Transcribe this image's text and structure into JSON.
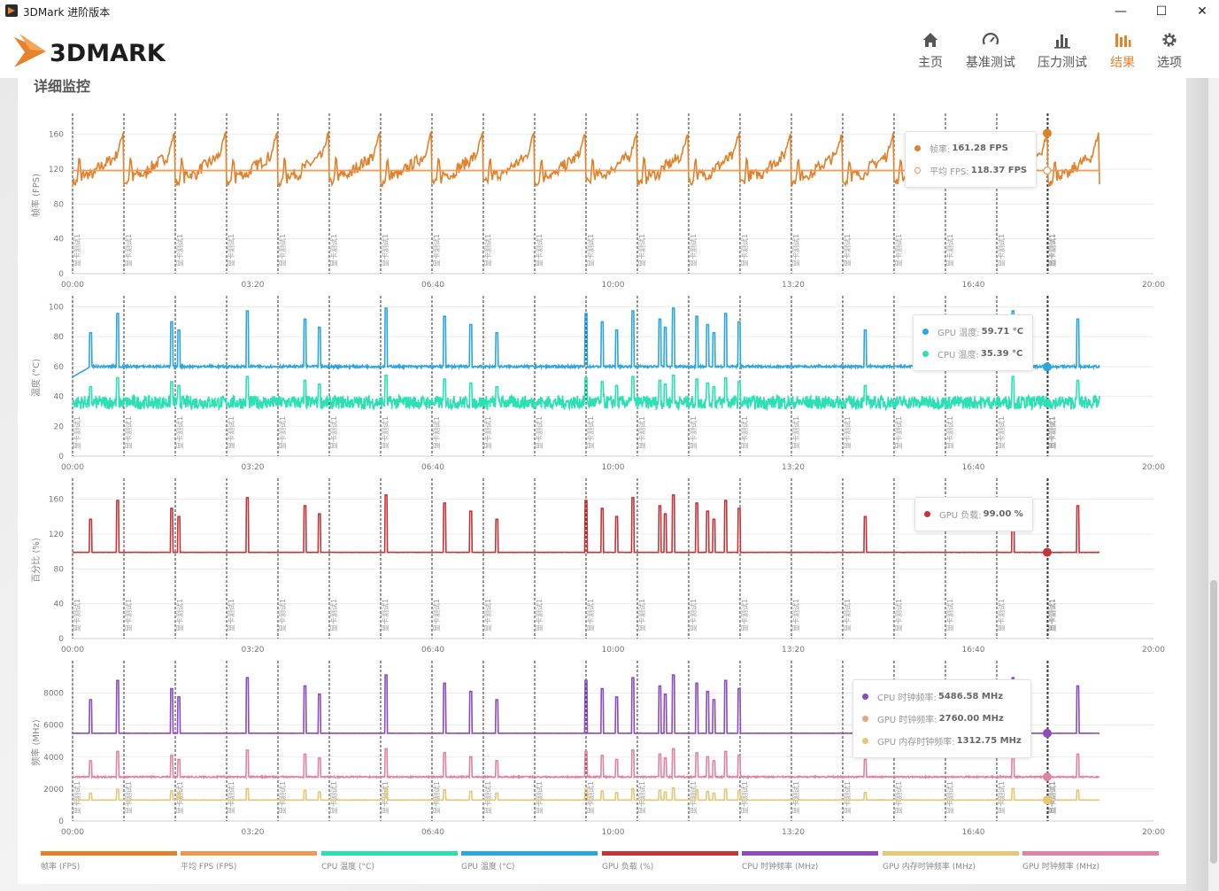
{
  "window": {
    "title": "3DMark 进阶版本",
    "minimize": "—",
    "maximize": "☐",
    "close": "✕"
  },
  "header": {
    "logo_text": "3DMARK",
    "nav": [
      {
        "label": "主页",
        "icon": "home-icon"
      },
      {
        "label": "基准测试",
        "icon": "gauge-icon"
      },
      {
        "label": "压力测试",
        "icon": "bar-chart-icon"
      },
      {
        "label": "结果",
        "icon": "results-icon",
        "active": true
      },
      {
        "label": "选项",
        "icon": "gear-icon"
      }
    ]
  },
  "section_title": "详细监控",
  "colors": {
    "accent": "#e5822b",
    "fps": "#e0812c",
    "avg_fps": "#ec9a55",
    "gpu_temp": "#2ba7df",
    "cpu_temp": "#2de0b4",
    "gpu_load": "#c3353a",
    "cpu_clock": "#8d4bbd",
    "gpu_clock": "#e083a2",
    "gpu_mem_clock": "#e7c775"
  },
  "x_ticks": [
    "00:00",
    "03:20",
    "06:40",
    "10:00",
    "13:20",
    "16:40",
    "20:00"
  ],
  "marker_label": "显卡测试1",
  "tooltips": {
    "fps": [
      {
        "label": "帧率:",
        "value": "161.28 FPS"
      },
      {
        "label": "平均 FPS:",
        "value": "118.37 FPS"
      }
    ],
    "temp": [
      {
        "label": "GPU 温度:",
        "value": "59.71 °C"
      },
      {
        "label": "CPU 温度:",
        "value": "35.39 °C"
      }
    ],
    "load": [
      {
        "label": "GPU 负载:",
        "value": "99.00 %"
      }
    ],
    "clock": [
      {
        "label": "CPU 时钟频率:",
        "value": "5486.58 MHz"
      },
      {
        "label": "GPU 时钟频率:",
        "value": "2760.00 MHz"
      },
      {
        "label": "GPU 内存时钟频率:",
        "value": "1312.75 MHz"
      }
    ]
  },
  "legend": [
    {
      "label": "帧率 (FPS)",
      "color": "#e0812c"
    },
    {
      "label": "平均 FPS (FPS)",
      "color": "#ec9a55"
    },
    {
      "label": "CPU 温度 (°C)",
      "color": "#2de0b4"
    },
    {
      "label": "GPU 温度 (°C)",
      "color": "#2ba7df"
    },
    {
      "label": "GPU 负载 (%)",
      "color": "#c3353a"
    },
    {
      "label": "CPU 时钟频率 (MHz)",
      "color": "#8d4bbd"
    },
    {
      "label": "GPU 内存时钟频率 (MHz)",
      "color": "#e7c775"
    },
    {
      "label": "GPU 时钟频率 (MHz)",
      "color": "#e083a2"
    }
  ],
  "chart_data": [
    {
      "type": "line",
      "ylabel": "帧率 (FPS)",
      "yticks": [
        0,
        40,
        80,
        120,
        160
      ],
      "ylim": [
        0,
        180
      ],
      "xlim_seconds": [
        0,
        1200
      ],
      "series": [
        {
          "name": "帧率",
          "pattern": "sawtooth",
          "min": 97,
          "max": 162,
          "period_seconds": 57
        },
        {
          "name": "平均 FPS",
          "constant": 118.37
        }
      ],
      "cursor": {
        "x_seconds": 1082,
        "values": [
          161.28,
          118.37
        ]
      }
    },
    {
      "type": "line",
      "ylabel": "温度 (°C)",
      "yticks": [
        0,
        20,
        40,
        60,
        80,
        100
      ],
      "ylim": [
        0,
        105
      ],
      "xlim_seconds": [
        0,
        1200
      ],
      "series": [
        {
          "name": "GPU 温度",
          "baseline": 60,
          "spikes_max": 101
        },
        {
          "name": "CPU 温度",
          "baseline": 36,
          "spikes_max": 55
        }
      ],
      "cursor": {
        "x_seconds": 1082,
        "values": [
          59.71,
          35.39
        ]
      }
    },
    {
      "type": "line",
      "ylabel": "百分比 (%)",
      "yticks": [
        0,
        40,
        80,
        120,
        160
      ],
      "ylim": [
        0,
        180
      ],
      "xlim_seconds": [
        0,
        1200
      ],
      "series": [
        {
          "name": "GPU 负载",
          "baseline": 99,
          "spikes_max": 168
        }
      ],
      "cursor": {
        "x_seconds": 1082,
        "values": [
          99.0
        ]
      }
    },
    {
      "type": "line",
      "ylabel": "频率 (MHz)",
      "yticks": [
        0,
        2000,
        4000,
        6000,
        8000
      ],
      "ylim": [
        0,
        9800
      ],
      "xlim_seconds": [
        0,
        1200
      ],
      "series": [
        {
          "name": "CPU 时钟频率",
          "baseline": 5486.58,
          "spikes_max": 9300
        },
        {
          "name": "GPU 时钟频率",
          "baseline": 2760.0,
          "spikes_max": 4600
        },
        {
          "name": "GPU 内存时钟频率",
          "baseline": 1312.75,
          "spikes_max": 2100
        }
      ],
      "cursor": {
        "x_seconds": 1082,
        "values": [
          5486.58,
          2760.0,
          1312.75
        ]
      }
    }
  ]
}
